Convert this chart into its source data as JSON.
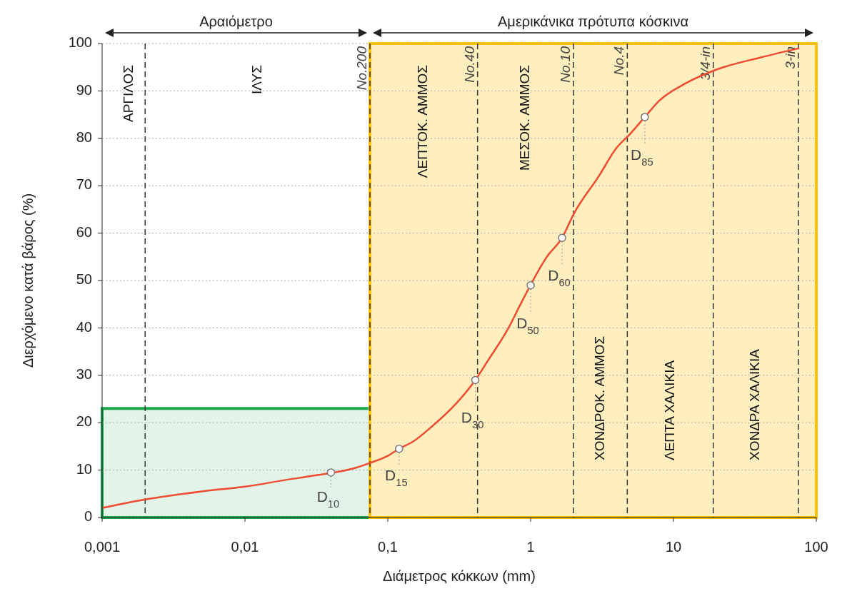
{
  "chart_data": {
    "type": "line",
    "xlabel": "Διάμετρος κόκκων (mm)",
    "ylabel": "Διερχόμενο κατά βάρος (%)",
    "log": "x",
    "xlim": [
      0.001,
      100
    ],
    "xticks": [
      {
        "value": 0.001,
        "label": "0,001"
      },
      {
        "value": 0.01,
        "label": "0,01"
      },
      {
        "value": 0.1,
        "label": "0,1"
      },
      1,
      10,
      100
    ],
    "ylim": [
      0,
      100
    ],
    "yticks": [
      0,
      10,
      20,
      30,
      40,
      50,
      60,
      70,
      80,
      90,
      100
    ],
    "grid": "y",
    "series": [
      {
        "color": "#f04a30",
        "marker": "none",
        "x": [
          0.001,
          0.002,
          0.005,
          0.01,
          0.02,
          0.03,
          0.06,
          0.075,
          0.1,
          0.12,
          0.15,
          0.2,
          0.3,
          0.41,
          0.5,
          0.7,
          0.85,
          1.3,
          1.66,
          2.0,
          3,
          4,
          5,
          6.3,
          8,
          12,
          20,
          40,
          76
        ],
        "values": [
          2,
          3.8,
          5.5,
          6.5,
          8,
          8.8,
          10.5,
          11.5,
          13,
          14.5,
          16,
          19,
          24,
          29,
          33,
          40,
          45,
          55,
          59,
          64,
          72,
          78,
          81,
          84.5,
          88,
          91.5,
          94.5,
          97,
          99
        ]
      },
      {
        "type": "scatter",
        "color": "#777777",
        "marker": "circle",
        "x": [
          0.04,
          0.12,
          0.41,
          1.0,
          1.66,
          6.3
        ],
        "values": [
          9.5,
          14.5,
          29,
          49,
          59,
          84.5
        ]
      }
    ],
    "ref_lines": [
      {
        "axis": "x",
        "value": 0.002,
        "line_style": "dashed",
        "color": "#333333"
      },
      {
        "axis": "x",
        "value": 0.075,
        "label": "No.200",
        "line_style": "dashed",
        "color": "#333333"
      },
      {
        "axis": "x",
        "value": 0.425,
        "label": "No.40",
        "line_style": "dashed",
        "color": "#333333"
      },
      {
        "axis": "x",
        "value": 2.0,
        "label": "No.10",
        "line_style": "dashed",
        "color": "#333333"
      },
      {
        "axis": "x",
        "value": 4.75,
        "label": "No.4",
        "line_style": "dashed",
        "color": "#333333"
      },
      {
        "axis": "x",
        "value": 19,
        "label": "3/4-in",
        "line_style": "dashed",
        "color": "#333333"
      },
      {
        "axis": "x",
        "value": 75,
        "label": "3-in",
        "line_style": "dashed",
        "color": "#333333"
      }
    ],
    "bands": [
      {
        "axis": "y",
        "from": 0,
        "to": 23,
        "color": "#1aa84a"
      },
      {
        "axis": "x",
        "from": 0.075,
        "to": 100,
        "label": "Αμερικάνικα πρότυπα κόσκινα",
        "color": "#ffc000"
      }
    ],
    "annotations": [
      "ΑΡΓΙΛΟΣ",
      "ΙΛΥΣ",
      "ΛΕΠΤΟΚ. ΑΜΜΟΣ",
      "ΜΕΣΟΚ. ΑΜΜΟΣ",
      "ΧΟΝΔΡΟΚ. ΑΜΜΟΣ",
      "ΛΕΠΤΑ ΧΑΛΙΚΙΑ",
      "ΧΟΝΔΡΑ ΧΑΛΙΚΙΑ",
      "Αραιόμετρο",
      {
        "text": "D$_{10}$",
        "x": 0.04,
        "y": 9.5
      },
      {
        "text": "D$_{15}$",
        "x": 0.12,
        "y": 14.5
      },
      {
        "text": "D$_{30}$",
        "x": 0.41,
        "y": 29
      },
      {
        "text": "D$_{50}$",
        "x": 1.0,
        "y": 49
      },
      {
        "text": "D$_{60}$",
        "x": 1.66,
        "y": 59
      },
      {
        "text": "D$_{85}$",
        "x": 6.3,
        "y": 84.5
      }
    ]
  }
}
